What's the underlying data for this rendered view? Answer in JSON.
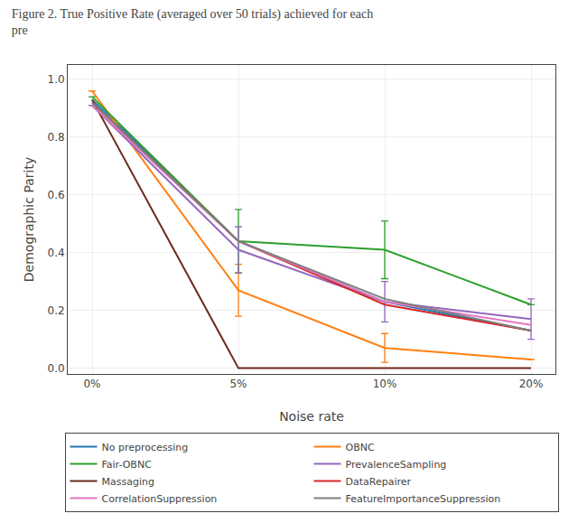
{
  "chart_data": {
    "type": "line",
    "title": "Figure 2. True Positive Rate (averaged over 50 trials) achieved for each",
    "subtitle": "pre",
    "xlabel": "Noise rate",
    "ylabel": "Demographic Parity",
    "categories": [
      "0%",
      "5%",
      "10%",
      "20%"
    ],
    "ylim": [
      -0.02,
      1.05
    ],
    "yticks": [
      {
        "value": 0,
        "label": "0.0"
      },
      0.2,
      0.4,
      0.6,
      0.8,
      {
        "value": 1,
        "label": "1.0"
      }
    ],
    "legend": "bottom",
    "series": [
      {
        "name": "No preprocessing",
        "color": "#1f77b4",
        "values": [
          0.93,
          0.44,
          0.23,
          0.13
        ]
      },
      {
        "name": "OBNC",
        "color": "#ff7f0e",
        "values": [
          0.96,
          0.27,
          0.07,
          0.03
        ],
        "yerr": [
          0,
          0.09,
          0.05,
          0
        ]
      },
      {
        "name": "Fair-OBNC",
        "color": "#2ca02c",
        "values": [
          0.94,
          0.44,
          0.41,
          0.22
        ],
        "yerr": [
          0,
          0.11,
          0.1,
          0
        ]
      },
      {
        "name": "PrevalenceSampling",
        "color": "#9467bd",
        "values": [
          0.91,
          0.41,
          0.23,
          0.17
        ],
        "yerr": [
          0,
          0.08,
          0.07,
          0.07
        ]
      },
      {
        "name": "Massaging",
        "color": "#6b2a1a",
        "values": [
          0.93,
          0.0,
          0.0,
          0.0
        ]
      },
      {
        "name": "DataRepairer",
        "color": "#d62728",
        "values": [
          0.92,
          0.44,
          0.22,
          0.13
        ]
      },
      {
        "name": "CorrelationSuppression",
        "color": "#e377c2",
        "values": [
          0.91,
          0.44,
          0.23,
          0.15
        ]
      },
      {
        "name": "FeatureImportanceSuppression",
        "color": "#7f7f7f",
        "values": [
          0.92,
          0.44,
          0.24,
          0.13
        ]
      }
    ]
  }
}
